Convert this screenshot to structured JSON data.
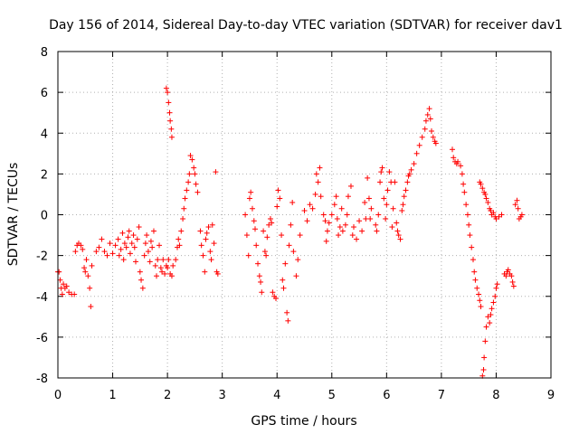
{
  "chart_data": {
    "type": "scatter",
    "title": "Day 156 of 2014, Sidereal Day-to-day VTEC variation (SDTVAR) for receiver dav1",
    "xlabel": "GPS time / hours",
    "ylabel": "SDTVAR / TECUs",
    "xlim": [
      0,
      9
    ],
    "ylim": [
      -8,
      8
    ],
    "xticks": [
      "0",
      "1",
      "2",
      "3",
      "4",
      "5",
      "6",
      "7",
      "8",
      "9"
    ],
    "yticks": [
      "-8",
      "-6",
      "-4",
      "-2",
      "0",
      "2",
      "4",
      "6",
      "8"
    ],
    "grid": true,
    "marker": "+",
    "color": "#ff0000",
    "series": [
      {
        "name": "dav1",
        "points": [
          [
            0.0,
            -2.8
          ],
          [
            0.02,
            -2.8
          ],
          [
            0.04,
            -3.2
          ],
          [
            0.06,
            -3.6
          ],
          [
            0.08,
            -3.9
          ],
          [
            0.1,
            -3.4
          ],
          [
            0.13,
            -3.6
          ],
          [
            0.16,
            -3.5
          ],
          [
            0.2,
            -3.8
          ],
          [
            0.25,
            -3.9
          ],
          [
            0.3,
            -3.9
          ],
          [
            0.32,
            -1.8
          ],
          [
            0.35,
            -1.5
          ],
          [
            0.38,
            -1.4
          ],
          [
            0.42,
            -1.5
          ],
          [
            0.45,
            -1.7
          ],
          [
            0.48,
            -2.6
          ],
          [
            0.5,
            -2.8
          ],
          [
            0.52,
            -2.2
          ],
          [
            0.55,
            -3.0
          ],
          [
            0.58,
            -3.6
          ],
          [
            0.6,
            -4.5
          ],
          [
            0.62,
            -2.5
          ],
          [
            0.7,
            -1.8
          ],
          [
            0.75,
            -1.6
          ],
          [
            0.8,
            -1.2
          ],
          [
            0.85,
            -1.8
          ],
          [
            0.9,
            -2.0
          ],
          [
            0.95,
            -1.4
          ],
          [
            1.0,
            -1.9
          ],
          [
            1.05,
            -1.5
          ],
          [
            1.1,
            -1.2
          ],
          [
            1.12,
            -2.0
          ],
          [
            1.15,
            -1.7
          ],
          [
            1.18,
            -0.9
          ],
          [
            1.2,
            -2.2
          ],
          [
            1.22,
            -1.4
          ],
          [
            1.25,
            -1.6
          ],
          [
            1.28,
            -1.1
          ],
          [
            1.3,
            -0.8
          ],
          [
            1.32,
            -1.9
          ],
          [
            1.35,
            -1.4
          ],
          [
            1.38,
            -1.0
          ],
          [
            1.4,
            -1.6
          ],
          [
            1.42,
            -2.3
          ],
          [
            1.45,
            -1.2
          ],
          [
            1.48,
            -0.6
          ],
          [
            1.5,
            -2.8
          ],
          [
            1.52,
            -3.2
          ],
          [
            1.55,
            -3.6
          ],
          [
            1.58,
            -2.0
          ],
          [
            1.6,
            -1.4
          ],
          [
            1.62,
            -1.0
          ],
          [
            1.65,
            -1.8
          ],
          [
            1.68,
            -2.3
          ],
          [
            1.7,
            -1.3
          ],
          [
            1.72,
            -1.6
          ],
          [
            1.75,
            -0.8
          ],
          [
            1.78,
            -2.5
          ],
          [
            1.8,
            -3.0
          ],
          [
            1.82,
            -2.2
          ],
          [
            1.85,
            -1.5
          ],
          [
            1.88,
            -2.6
          ],
          [
            1.9,
            -2.8
          ],
          [
            1.92,
            -2.2
          ],
          [
            1.95,
            -2.9
          ],
          [
            1.98,
            -2.5
          ],
          [
            2.0,
            -2.6
          ],
          [
            2.02,
            -2.2
          ],
          [
            2.05,
            -2.9
          ],
          [
            2.08,
            -3.0
          ],
          [
            1.98,
            6.2
          ],
          [
            2.0,
            6.0
          ],
          [
            2.02,
            5.5
          ],
          [
            2.04,
            5.0
          ],
          [
            2.05,
            4.6
          ],
          [
            2.07,
            4.2
          ],
          [
            2.08,
            3.8
          ],
          [
            2.1,
            -2.5
          ],
          [
            2.15,
            -2.2
          ],
          [
            2.18,
            -1.6
          ],
          [
            2.2,
            -1.2
          ],
          [
            2.22,
            -1.5
          ],
          [
            2.25,
            -0.8
          ],
          [
            2.28,
            -0.2
          ],
          [
            2.3,
            0.3
          ],
          [
            2.32,
            0.8
          ],
          [
            2.35,
            1.2
          ],
          [
            2.38,
            1.6
          ],
          [
            2.4,
            2.0
          ],
          [
            2.42,
            2.9
          ],
          [
            2.45,
            2.7
          ],
          [
            2.48,
            2.3
          ],
          [
            2.5,
            2.0
          ],
          [
            2.52,
            1.5
          ],
          [
            2.55,
            1.1
          ],
          [
            2.6,
            -0.8
          ],
          [
            2.62,
            -1.5
          ],
          [
            2.65,
            -2.0
          ],
          [
            2.68,
            -2.8
          ],
          [
            2.7,
            -1.2
          ],
          [
            2.72,
            -0.9
          ],
          [
            2.75,
            -0.6
          ],
          [
            2.78,
            -1.8
          ],
          [
            2.8,
            -2.2
          ],
          [
            2.82,
            -0.5
          ],
          [
            2.85,
            -1.4
          ],
          [
            2.88,
            2.1
          ],
          [
            2.9,
            -2.8
          ],
          [
            2.92,
            -2.9
          ],
          [
            3.42,
            0.0
          ],
          [
            3.45,
            -1.0
          ],
          [
            3.48,
            -2.0
          ],
          [
            3.5,
            0.8
          ],
          [
            3.52,
            1.1
          ],
          [
            3.55,
            0.3
          ],
          [
            3.58,
            -0.3
          ],
          [
            3.6,
            -0.7
          ],
          [
            3.62,
            -1.5
          ],
          [
            3.65,
            -2.4
          ],
          [
            3.68,
            -3.0
          ],
          [
            3.7,
            -3.3
          ],
          [
            3.72,
            -3.8
          ],
          [
            3.75,
            -0.8
          ],
          [
            3.78,
            -1.8
          ],
          [
            3.8,
            -2.0
          ],
          [
            3.82,
            -1.1
          ],
          [
            3.85,
            -0.5
          ],
          [
            3.88,
            -0.2
          ],
          [
            3.9,
            -0.4
          ],
          [
            3.92,
            -3.8
          ],
          [
            3.95,
            -4.0
          ],
          [
            3.98,
            -4.1
          ],
          [
            4.0,
            0.4
          ],
          [
            4.02,
            1.2
          ],
          [
            4.05,
            0.8
          ],
          [
            4.08,
            -1.0
          ],
          [
            4.1,
            -3.2
          ],
          [
            4.12,
            -3.6
          ],
          [
            4.15,
            -2.4
          ],
          [
            4.18,
            -4.8
          ],
          [
            4.2,
            -5.2
          ],
          [
            4.22,
            -1.5
          ],
          [
            4.25,
            -0.5
          ],
          [
            4.28,
            0.6
          ],
          [
            4.3,
            -1.8
          ],
          [
            4.35,
            -3.0
          ],
          [
            4.38,
            -2.2
          ],
          [
            4.42,
            -1.0
          ],
          [
            4.5,
            0.2
          ],
          [
            4.55,
            -0.3
          ],
          [
            4.6,
            0.5
          ],
          [
            4.65,
            0.3
          ],
          [
            4.7,
            1.0
          ],
          [
            4.72,
            2.0
          ],
          [
            4.75,
            1.6
          ],
          [
            4.78,
            2.3
          ],
          [
            4.8,
            0.9
          ],
          [
            4.85,
            0.0
          ],
          [
            4.88,
            -0.3
          ],
          [
            4.9,
            -1.3
          ],
          [
            4.92,
            -0.8
          ],
          [
            4.95,
            -0.4
          ],
          [
            5.0,
            0.0
          ],
          [
            5.05,
            0.5
          ],
          [
            5.08,
            0.9
          ],
          [
            5.1,
            -0.2
          ],
          [
            5.12,
            -1.0
          ],
          [
            5.15,
            -0.6
          ],
          [
            5.18,
            0.3
          ],
          [
            5.2,
            -0.8
          ],
          [
            5.25,
            -0.5
          ],
          [
            5.28,
            0.0
          ],
          [
            5.3,
            0.9
          ],
          [
            5.35,
            1.4
          ],
          [
            5.38,
            -1.0
          ],
          [
            5.4,
            -0.6
          ],
          [
            5.45,
            -1.2
          ],
          [
            5.5,
            -0.3
          ],
          [
            5.55,
            -0.8
          ],
          [
            5.6,
            0.6
          ],
          [
            5.62,
            -0.2
          ],
          [
            5.65,
            1.8
          ],
          [
            5.68,
            0.8
          ],
          [
            5.7,
            -0.2
          ],
          [
            5.72,
            0.3
          ],
          [
            5.8,
            -0.5
          ],
          [
            5.82,
            -0.8
          ],
          [
            5.85,
            0.0
          ],
          [
            5.88,
            1.6
          ],
          [
            5.9,
            2.1
          ],
          [
            5.92,
            2.3
          ],
          [
            5.95,
            0.8
          ],
          [
            5.98,
            -0.2
          ],
          [
            6.0,
            0.5
          ],
          [
            6.02,
            1.2
          ],
          [
            6.05,
            2.1
          ],
          [
            6.08,
            1.6
          ],
          [
            6.1,
            -0.6
          ],
          [
            6.12,
            0.3
          ],
          [
            6.15,
            1.6
          ],
          [
            6.18,
            -0.4
          ],
          [
            6.2,
            -0.8
          ],
          [
            6.22,
            -1.0
          ],
          [
            6.25,
            -1.2
          ],
          [
            6.28,
            0.2
          ],
          [
            6.3,
            0.5
          ],
          [
            6.32,
            0.9
          ],
          [
            6.35,
            1.2
          ],
          [
            6.38,
            1.6
          ],
          [
            6.4,
            1.9
          ],
          [
            6.42,
            2.0
          ],
          [
            6.45,
            2.2
          ],
          [
            6.5,
            2.5
          ],
          [
            6.55,
            3.0
          ],
          [
            6.6,
            3.4
          ],
          [
            6.65,
            3.8
          ],
          [
            6.7,
            4.2
          ],
          [
            6.72,
            4.6
          ],
          [
            6.75,
            4.9
          ],
          [
            6.78,
            5.2
          ],
          [
            6.8,
            4.7
          ],
          [
            6.82,
            4.1
          ],
          [
            6.85,
            3.8
          ],
          [
            6.88,
            3.6
          ],
          [
            6.9,
            3.5
          ],
          [
            7.2,
            3.2
          ],
          [
            7.22,
            2.8
          ],
          [
            7.25,
            2.6
          ],
          [
            7.28,
            2.5
          ],
          [
            7.3,
            2.6
          ],
          [
            7.35,
            2.4
          ],
          [
            7.38,
            2.0
          ],
          [
            7.4,
            1.5
          ],
          [
            7.42,
            1.1
          ],
          [
            7.45,
            0.5
          ],
          [
            7.48,
            0.0
          ],
          [
            7.5,
            -0.5
          ],
          [
            7.52,
            -1.0
          ],
          [
            7.55,
            -1.6
          ],
          [
            7.58,
            -2.2
          ],
          [
            7.6,
            -2.8
          ],
          [
            7.62,
            -3.2
          ],
          [
            7.65,
            -3.6
          ],
          [
            7.68,
            -3.9
          ],
          [
            7.7,
            -4.2
          ],
          [
            7.72,
            -4.5
          ],
          [
            7.75,
            -7.9
          ],
          [
            7.77,
            -7.6
          ],
          [
            7.78,
            -7.0
          ],
          [
            7.8,
            -6.2
          ],
          [
            7.82,
            -5.5
          ],
          [
            7.85,
            -5.0
          ],
          [
            7.88,
            -5.3
          ],
          [
            7.9,
            -4.9
          ],
          [
            7.92,
            -4.6
          ],
          [
            7.95,
            -4.3
          ],
          [
            7.98,
            -4.0
          ],
          [
            8.0,
            -3.6
          ],
          [
            8.02,
            -3.4
          ],
          [
            7.7,
            1.6
          ],
          [
            7.72,
            1.5
          ],
          [
            7.75,
            1.3
          ],
          [
            7.78,
            1.1
          ],
          [
            7.8,
            1.0
          ],
          [
            7.82,
            0.8
          ],
          [
            7.85,
            0.6
          ],
          [
            7.88,
            0.3
          ],
          [
            7.9,
            0.2
          ],
          [
            7.92,
            0.0
          ],
          [
            7.95,
            0.1
          ],
          [
            7.98,
            -0.1
          ],
          [
            8.0,
            -0.2
          ],
          [
            8.05,
            -0.1
          ],
          [
            8.1,
            0.0
          ],
          [
            8.15,
            -2.9
          ],
          [
            8.18,
            -3.0
          ],
          [
            8.2,
            -2.8
          ],
          [
            8.22,
            -2.7
          ],
          [
            8.25,
            -2.9
          ],
          [
            8.28,
            -3.0
          ],
          [
            8.3,
            -3.3
          ],
          [
            8.32,
            -3.5
          ],
          [
            8.35,
            0.5
          ],
          [
            8.38,
            0.7
          ],
          [
            8.4,
            0.3
          ],
          [
            8.42,
            -0.2
          ],
          [
            8.45,
            -0.1
          ],
          [
            8.47,
            0.0
          ]
        ]
      }
    ]
  }
}
